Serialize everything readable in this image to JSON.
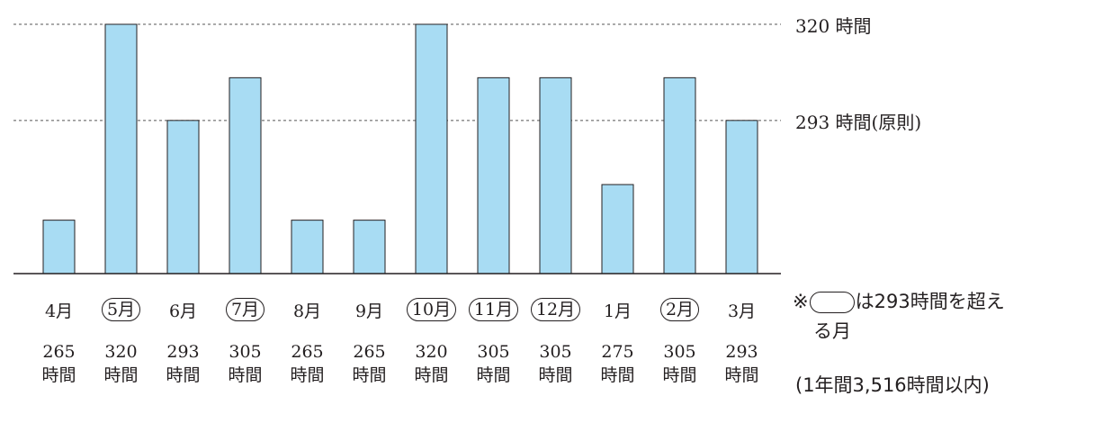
{
  "chart_data": {
    "type": "bar",
    "categories": [
      "4月",
      "5月",
      "6月",
      "7月",
      "8月",
      "9月",
      "10月",
      "11月",
      "12月",
      "1月",
      "2月",
      "3月"
    ],
    "values": [
      265,
      320,
      293,
      305,
      265,
      265,
      320,
      305,
      305,
      275,
      305,
      293
    ],
    "hour_labels": [
      "265",
      "320",
      "293",
      "305",
      "265",
      "265",
      "320",
      "305",
      "305",
      "275",
      "305",
      "293"
    ],
    "unit": "時間",
    "circled": [
      false,
      true,
      false,
      true,
      false,
      false,
      true,
      true,
      true,
      false,
      true,
      false
    ],
    "reference_lines": [
      {
        "value": 320,
        "label": "320 時間"
      },
      {
        "value": 293,
        "label": "293 時間(原則)"
      }
    ],
    "ylim": [
      250,
      320
    ],
    "bar_color": "#a8dcf3",
    "bar_stroke": "#231f20",
    "grid": false
  },
  "notes": {
    "legend_prefix": "※",
    "legend_suffix": "は293時間を超え",
    "legend_line2": "る月",
    "annual_limit": "(1年間3,516時間以内)"
  }
}
